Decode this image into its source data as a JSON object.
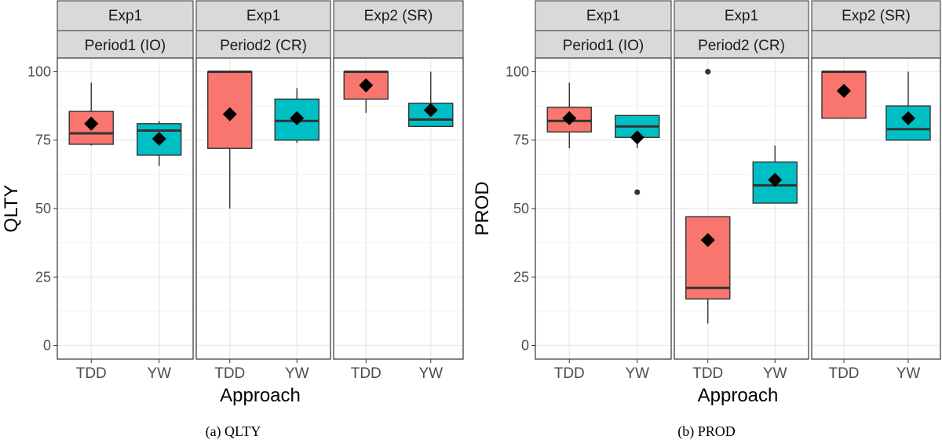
{
  "colors": {
    "TDD": "#F8766D",
    "YW": "#00BFC4",
    "strip_bg": "#D9D9D9",
    "grid": "#EBEBEB",
    "ink": "#1A1A1A",
    "axis_text": "#4D4D4D"
  },
  "chart_data": [
    {
      "type": "boxplot",
      "caption": "(a) QLTY",
      "ylabel": "QLTY",
      "xlabel": "Approach",
      "categories": [
        "TDD",
        "YW"
      ],
      "ylim": [
        -5,
        105
      ],
      "yticks": [
        0,
        25,
        50,
        75,
        100
      ],
      "grid": true,
      "facets": [
        {
          "strip_top": "Exp1",
          "strip_bottom": "Period1 (IO)",
          "boxes": [
            {
              "group": "TDD",
              "whisker_low": 73,
              "q1": 73.5,
              "median": 77.5,
              "q3": 85.5,
              "whisker_high": 96,
              "mean": 81,
              "outliers": []
            },
            {
              "group": "YW",
              "whisker_low": 65.5,
              "q1": 69.5,
              "median": 78.5,
              "q3": 81,
              "whisker_high": 82,
              "mean": 75.5,
              "outliers": []
            }
          ]
        },
        {
          "strip_top": "Exp1",
          "strip_bottom": "Period2 (CR)",
          "boxes": [
            {
              "group": "TDD",
              "whisker_low": 50,
              "q1": 72,
              "median": 100,
              "q3": 100,
              "whisker_high": 100,
              "mean": 84.5,
              "outliers": []
            },
            {
              "group": "YW",
              "whisker_low": 74,
              "q1": 75,
              "median": 82,
              "q3": 90,
              "whisker_high": 94,
              "mean": 83,
              "outliers": []
            }
          ]
        },
        {
          "strip_top": "Exp2 (SR)",
          "strip_bottom": "",
          "boxes": [
            {
              "group": "TDD",
              "whisker_low": 85,
              "q1": 90,
              "median": 100,
              "q3": 100,
              "whisker_high": 100,
              "mean": 95,
              "outliers": []
            },
            {
              "group": "YW",
              "whisker_low": 80,
              "q1": 80,
              "median": 82.5,
              "q3": 88.5,
              "whisker_high": 100,
              "mean": 86,
              "outliers": []
            }
          ]
        }
      ]
    },
    {
      "type": "boxplot",
      "caption": "(b) PROD",
      "ylabel": "PROD",
      "xlabel": "Approach",
      "categories": [
        "TDD",
        "YW"
      ],
      "ylim": [
        -5,
        105
      ],
      "yticks": [
        0,
        25,
        50,
        75,
        100
      ],
      "grid": true,
      "facets": [
        {
          "strip_top": "Exp1",
          "strip_bottom": "Period1 (IO)",
          "boxes": [
            {
              "group": "TDD",
              "whisker_low": 72,
              "q1": 78,
              "median": 82,
              "q3": 87,
              "whisker_high": 96,
              "mean": 83,
              "outliers": []
            },
            {
              "group": "YW",
              "whisker_low": 72,
              "q1": 76,
              "median": 80,
              "q3": 84,
              "whisker_high": 84,
              "mean": 76,
              "outliers": [
                56
              ]
            }
          ]
        },
        {
          "strip_top": "Exp1",
          "strip_bottom": "Period2 (CR)",
          "boxes": [
            {
              "group": "TDD",
              "whisker_low": 8,
              "q1": 17,
              "median": 21,
              "q3": 47,
              "whisker_high": 47,
              "mean": 38.5,
              "outliers": [
                100
              ]
            },
            {
              "group": "YW",
              "whisker_low": 52,
              "q1": 52,
              "median": 58.5,
              "q3": 67,
              "whisker_high": 73,
              "mean": 60.5,
              "outliers": []
            }
          ]
        },
        {
          "strip_top": "Exp2 (SR)",
          "strip_bottom": "",
          "boxes": [
            {
              "group": "TDD",
              "whisker_low": 83,
              "q1": 83,
              "median": 100,
              "q3": 100,
              "whisker_high": 100,
              "mean": 93,
              "outliers": []
            },
            {
              "group": "YW",
              "whisker_low": 75,
              "q1": 75,
              "median": 79,
              "q3": 87.5,
              "whisker_high": 100,
              "mean": 83,
              "outliers": []
            }
          ]
        }
      ]
    }
  ]
}
